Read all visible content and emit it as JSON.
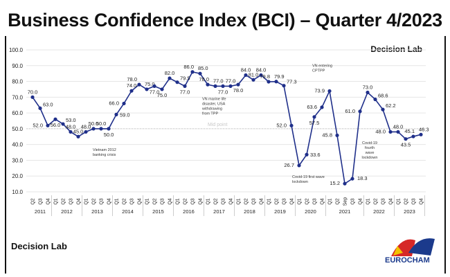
{
  "title": "Business Confidence Index (BCI) – Quarter 4/2023",
  "brand_top": "Decision Lab",
  "brand_bottom": "Decision Lab",
  "logo_text": "EUROCHAM",
  "colors": {
    "line": "#1f2f8a",
    "grid": "#e6e6e6",
    "text": "#222222"
  },
  "chart_data": {
    "type": "line",
    "title": "Business Confidence Index (BCI) – Quarter 4/2023",
    "ylim": [
      10,
      100
    ],
    "yticks": [
      "10.0",
      "20.0",
      "30.0",
      "40.0",
      "50.0",
      "60.0",
      "70.0",
      "80.0",
      "90.0",
      "100.0"
    ],
    "grid": true,
    "midpoint": {
      "value": 50,
      "label": "Mid point"
    },
    "years": [
      {
        "year": "2011",
        "quarters": [
          "Q2",
          "Q3",
          "Q4"
        ]
      },
      {
        "year": "2012",
        "quarters": [
          "Q1",
          "Q2",
          "Q3",
          "Q4"
        ]
      },
      {
        "year": "2013",
        "quarters": [
          "Q1",
          "Q2",
          "Q3",
          "Q4"
        ]
      },
      {
        "year": "2014",
        "quarters": [
          "Q1",
          "Q2",
          "Q3",
          "Q4"
        ]
      },
      {
        "year": "2015",
        "quarters": [
          "Q1",
          "Q2",
          "Q3",
          "Q4"
        ]
      },
      {
        "year": "2016",
        "quarters": [
          "Q1",
          "Q2",
          "Q3",
          "Q4"
        ]
      },
      {
        "year": "2017",
        "quarters": [
          "Q1",
          "Q2",
          "Q3",
          "Q4"
        ]
      },
      {
        "year": "2018",
        "quarters": [
          "Q1",
          "Q2",
          "Q3",
          "Q4"
        ]
      },
      {
        "year": "2019",
        "quarters": [
          "Q1",
          "Q2",
          "Q3",
          "Q4"
        ]
      },
      {
        "year": "2020",
        "quarters": [
          "Q1",
          "Q2",
          "Q3",
          "Q4"
        ]
      },
      {
        "year": "2021",
        "quarters": [
          "Q1",
          "Q2",
          "Sep",
          "Q3",
          "Q4"
        ]
      },
      {
        "year": "2022",
        "quarters": [
          "Q1",
          "Q2",
          "Q3",
          "Q4"
        ]
      },
      {
        "year": "2023",
        "quarters": [
          "Q1",
          "Q2",
          "Q3",
          "Q4"
        ]
      }
    ],
    "values": [
      70.0,
      63.0,
      52.0,
      56.0,
      53.0,
      48.0,
      45.0,
      48.0,
      50.0,
      50.0,
      50.0,
      59.0,
      66.0,
      74.0,
      78.0,
      75.0,
      77.0,
      75.0,
      82.0,
      79.5,
      77.0,
      86.0,
      85.0,
      78.0,
      77.0,
      77.0,
      77.0,
      78.0,
      84.0,
      81.0,
      84.0,
      79.8,
      79.9,
      77.3,
      52.0,
      26.7,
      33.6,
      57.5,
      63.6,
      73.9,
      45.8,
      15.2,
      18.3,
      61.0,
      73.0,
      68.6,
      62.2,
      48.0,
      48.0,
      43.5,
      45.1,
      46.3
    ],
    "annotations": [
      {
        "text": [
          "Vietnam 2012",
          "banking crisis"
        ],
        "point": "2013 Q3"
      },
      {
        "text": [
          "VN marine life",
          "disaster, USA",
          "withdrawing",
          "from TPP"
        ],
        "point": "2017 Q3"
      },
      {
        "text": [
          "Covid-19 first wave",
          "lockdown"
        ],
        "point": "2020 Q1"
      },
      {
        "text": [
          "VN entering",
          "CPTPP"
        ],
        "point": "2021 Q1"
      },
      {
        "text": [
          "Covid-19",
          "fourth",
          "wave",
          "lockdown"
        ],
        "point": "2021 Q3"
      }
    ]
  }
}
